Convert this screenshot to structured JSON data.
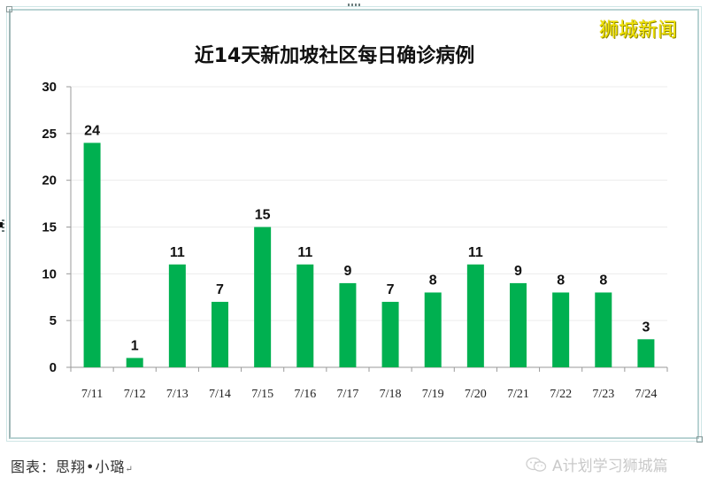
{
  "page": {
    "title": "近14天新加坡社区每日确诊病例",
    "watermark": "狮城新闻",
    "caption": "图表：思翔•小璐",
    "caption_return_mark": "↵",
    "credit": "A计划学习狮城篇",
    "credit_icon": "wechat-icon"
  },
  "colors": {
    "bar": "#00b050",
    "grid": "#ececec",
    "axis": "#9a9a9a",
    "watermark": "#f2e400",
    "frame": "#b9d3d3"
  },
  "chart_data": {
    "type": "bar",
    "title": "近14天新加坡社区每日确诊病例",
    "xlabel": "",
    "ylabel": "",
    "categories": [
      "7/11",
      "7/12",
      "7/13",
      "7/14",
      "7/15",
      "7/16",
      "7/17",
      "7/18",
      "7/19",
      "7/20",
      "7/21",
      "7/22",
      "7/23",
      "7/24"
    ],
    "values": [
      24,
      1,
      11,
      7,
      15,
      11,
      9,
      7,
      8,
      11,
      9,
      8,
      8,
      3
    ],
    "ylim": [
      0,
      30
    ],
    "yticks": [
      0,
      5,
      10,
      15,
      20,
      25,
      30
    ],
    "grid": true,
    "data_labels": true,
    "legend": "none"
  }
}
